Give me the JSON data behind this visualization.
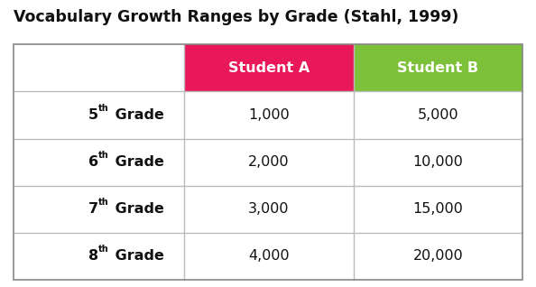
{
  "title": "Vocabulary Growth Ranges by Grade (Stahl, 1999)",
  "col_headers": [
    "",
    "Student A",
    "Student B"
  ],
  "col_header_colors": [
    "#ffffff",
    "#e8185a",
    "#7dc13a"
  ],
  "col_header_text_color": [
    "#000000",
    "#ffffff",
    "#ffffff"
  ],
  "rows": [
    [
      "1,000",
      "5,000"
    ],
    [
      "2,000",
      "10,000"
    ],
    [
      "3,000",
      "15,000"
    ],
    [
      "4,000",
      "20,000"
    ]
  ],
  "grade_numbers": [
    "5",
    "6",
    "7",
    "8"
  ],
  "superscript": "th",
  "background_color": "#ffffff",
  "border_color": "#bbbbbb",
  "title_fontsize": 12.5,
  "header_fontsize": 11.5,
  "cell_fontsize": 11.5,
  "row_label_fontsize": 11.5
}
